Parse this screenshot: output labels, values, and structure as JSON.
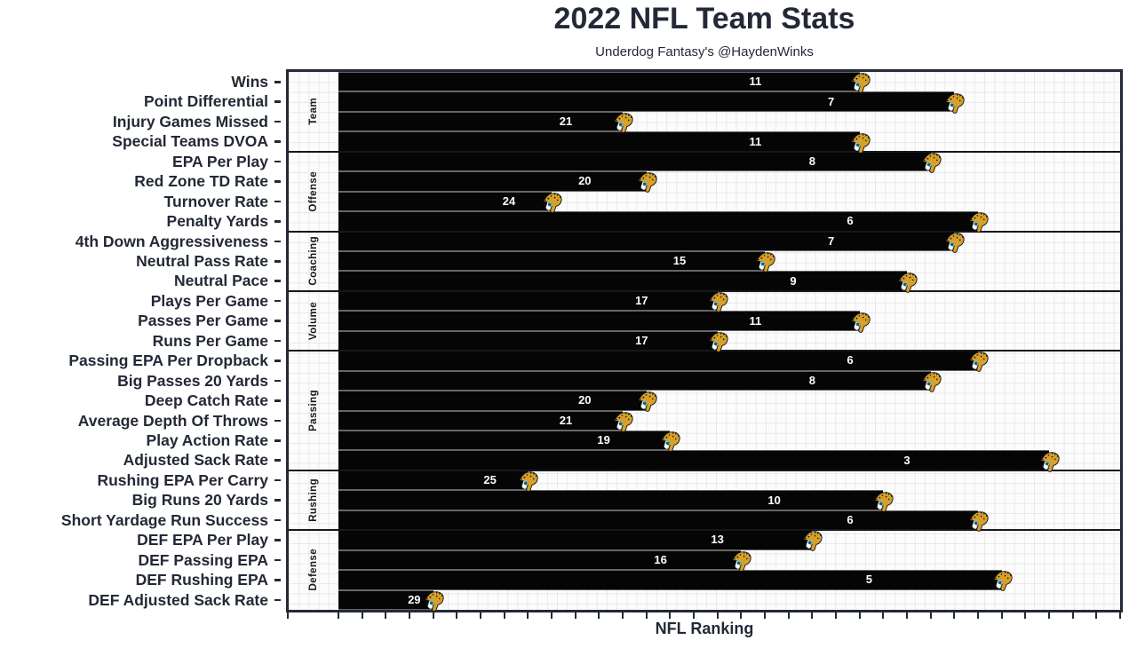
{
  "title": "2022 NFL Team Stats",
  "subtitle": "Underdog Fantasy's @HaydenWinks",
  "x_axis_label": "NFL Ranking",
  "team": "Jacksonville Jaguars",
  "icons": {
    "bar_cap": "jaguars-logo-icon"
  },
  "colors": {
    "text": "#232936",
    "bar": "#050505",
    "bar_value_label": "#ffffff",
    "plot_border": "#232936",
    "group_separator": "#15181f",
    "bar_row_separator": "#666666",
    "grid_line": "#e8e8e8",
    "plot_background": "#fcfcfc",
    "logo_gold": "#d7a128",
    "logo_teal": "#006778"
  },
  "chart_data": {
    "type": "bar",
    "orientation": "horizontal",
    "title": "2022 NFL Team Stats",
    "subtitle": "Underdog Fantasy's @HaydenWinks",
    "xlabel": "NFL Ranking",
    "value_note": "bar length = 33 - rank (rank 1 of 32 = longest bar); label on bar shows NFL rank",
    "xlim": [
      0,
      33
    ],
    "grid": true,
    "tick_labels_shown": false,
    "groups": [
      {
        "label": "Team",
        "rows": [
          {
            "label": "Wins",
            "rank": 11
          },
          {
            "label": "Point Differential",
            "rank": 7
          },
          {
            "label": "Injury Games Missed",
            "rank": 21
          },
          {
            "label": "Special Teams DVOA",
            "rank": 11
          }
        ]
      },
      {
        "label": "Offense",
        "rows": [
          {
            "label": "EPA Per Play",
            "rank": 8
          },
          {
            "label": "Red Zone TD Rate",
            "rank": 20
          },
          {
            "label": "Turnover Rate",
            "rank": 24
          },
          {
            "label": "Penalty Yards",
            "rank": 6
          }
        ]
      },
      {
        "label": "Coaching",
        "rows": [
          {
            "label": "4th Down Aggressiveness",
            "rank": 7
          },
          {
            "label": "Neutral Pass Rate",
            "rank": 15
          },
          {
            "label": "Neutral Pace",
            "rank": 9
          }
        ]
      },
      {
        "label": "Volume",
        "rows": [
          {
            "label": "Plays Per Game",
            "rank": 17
          },
          {
            "label": "Passes Per Game",
            "rank": 11
          },
          {
            "label": "Runs Per Game",
            "rank": 17
          }
        ]
      },
      {
        "label": "Passing",
        "rows": [
          {
            "label": "Passing EPA Per Dropback",
            "rank": 6
          },
          {
            "label": "Big Passes 20 Yards",
            "rank": 8
          },
          {
            "label": "Deep Catch Rate",
            "rank": 20
          },
          {
            "label": "Average Depth Of Throws",
            "rank": 21
          },
          {
            "label": "Play Action Rate",
            "rank": 19
          },
          {
            "label": "Adjusted Sack Rate",
            "rank": 3
          }
        ]
      },
      {
        "label": "Rushing",
        "rows": [
          {
            "label": "Rushing EPA Per Carry",
            "rank": 25
          },
          {
            "label": "Big Runs 20 Yards",
            "rank": 10
          },
          {
            "label": "Short Yardage Run Success",
            "rank": 6
          }
        ]
      },
      {
        "label": "Defense",
        "rows": [
          {
            "label": "DEF EPA Per Play",
            "rank": 13
          },
          {
            "label": "DEF Passing EPA",
            "rank": 16
          },
          {
            "label": "DEF Rushing EPA",
            "rank": 5
          },
          {
            "label": "DEF Adjusted Sack Rate",
            "rank": 29
          }
        ]
      }
    ]
  }
}
